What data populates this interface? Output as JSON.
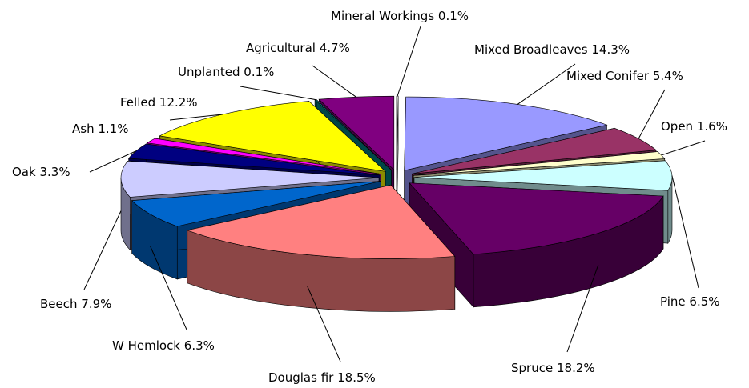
{
  "chart_data": {
    "type": "pie3d",
    "categories": [
      "Mineral Workings",
      "Mixed Broadleaves",
      "Mixed Conifer",
      "Open",
      "Pine",
      "Spruce",
      "Douglas fir",
      "W Hemlock",
      "Beech",
      "Oak",
      "Ash",
      "Felled",
      "Unplanted",
      "Agricultural"
    ],
    "values": [
      0.1,
      14.3,
      5.4,
      1.6,
      6.5,
      18.2,
      18.5,
      6.3,
      7.9,
      3.3,
      1.1,
      12.2,
      0.1,
      4.7
    ],
    "value_labels": [
      "0.1%",
      "14.3%",
      "5.4%",
      "1.6%",
      "6.5%",
      "18.2%",
      "18.5%",
      "6.3%",
      "7.9%",
      "3.3%",
      "1.1%",
      "12.2%",
      "0.1%",
      "4.7%"
    ],
    "colors": [
      "#ffffff",
      "#9999ff",
      "#993366",
      "#ffffcc",
      "#ccffff",
      "#660066",
      "#ff8080",
      "#0066cc",
      "#ccccff",
      "#000080",
      "#ff00ff",
      "#ffff00",
      "#008080",
      "#800080"
    ]
  }
}
